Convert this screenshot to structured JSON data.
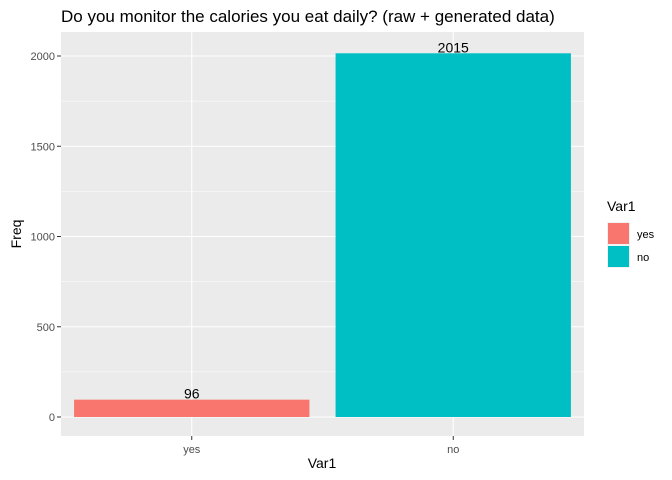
{
  "chart_data": {
    "type": "bar",
    "title": "Do you monitor the calories you eat daily? (raw + generated data)",
    "xlabel": "Var1",
    "ylabel": "Freq",
    "categories": [
      "yes",
      "no"
    ],
    "values": [
      96,
      2015
    ],
    "data_labels": [
      "96",
      "2015"
    ],
    "ylim": [
      0,
      2120
    ],
    "yticks": [
      0,
      500,
      1000,
      1500,
      2000
    ],
    "grid": true,
    "colors": [
      "#F8766D",
      "#00BFC4"
    ],
    "panel_background": "#EBEBEB",
    "legend": {
      "title": "Var1",
      "position": "right",
      "entries": [
        "yes",
        "no"
      ]
    }
  }
}
